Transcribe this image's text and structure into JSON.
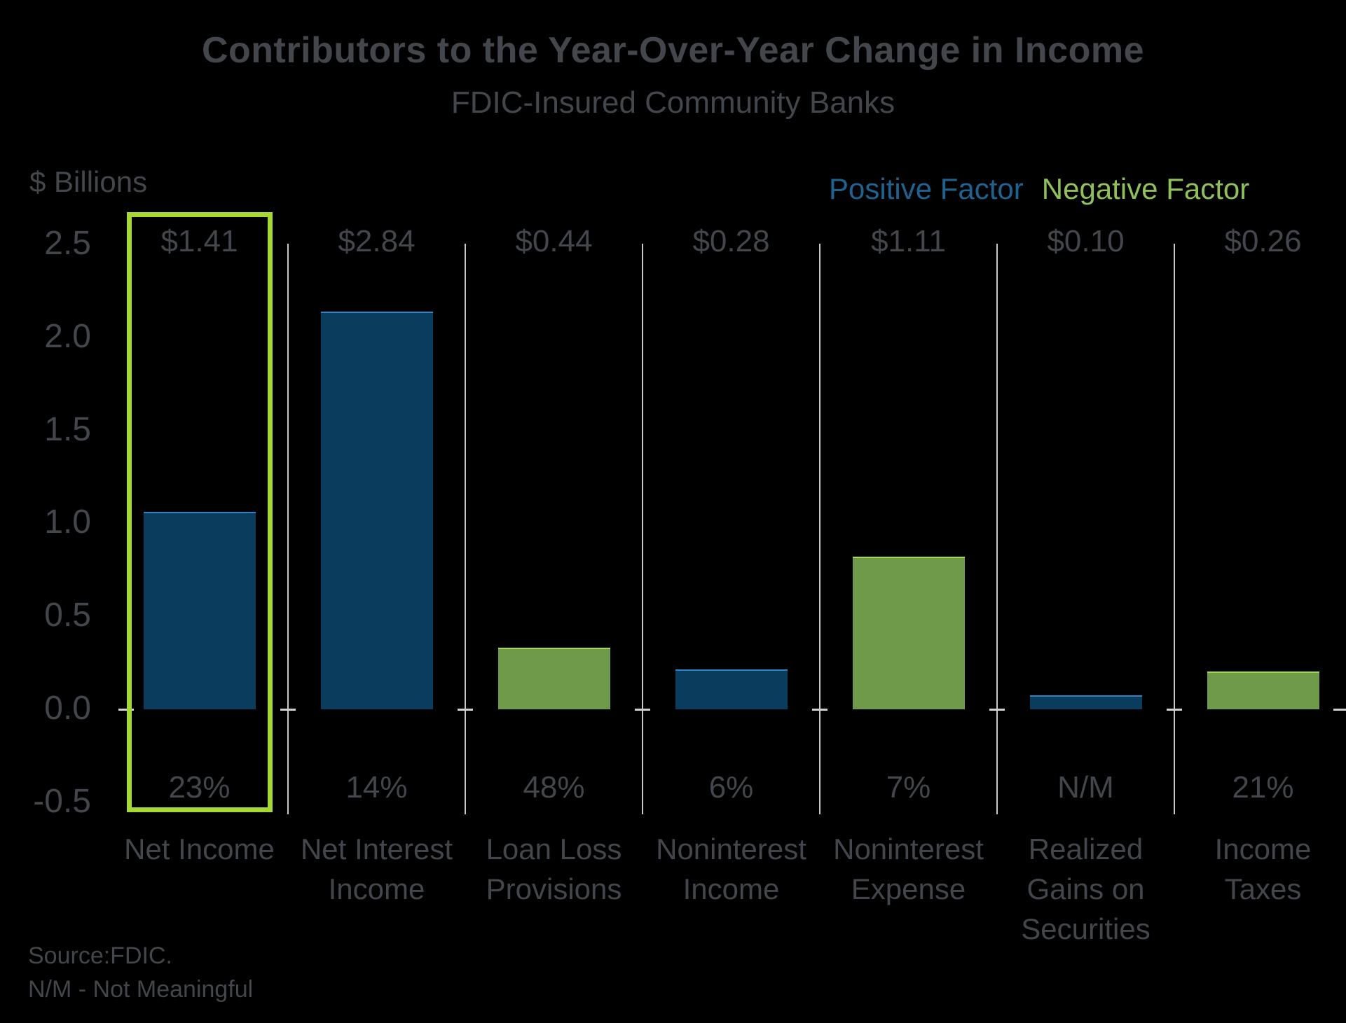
{
  "title": "Contributors to the Year-Over-Year Change in Income",
  "subtitle": "FDIC-Insured Community Banks",
  "y_axis_label": "$ Billions",
  "legend": {
    "positive_label": "Positive Factor",
    "negative_label": "Negative Factor"
  },
  "footer": {
    "source": "Source:FDIC.",
    "note": "N/M - Not Meaningful"
  },
  "colors": {
    "background": "#000000",
    "text": "#43464B",
    "positive_bar": "#0A3C5E",
    "positive_bar_edge": "#2D83C5",
    "negative_bar": "#6F9A4A",
    "negative_bar_edge": "#A9D84A",
    "positive_legend_text": "#1E6290",
    "negative_legend_text": "#8FC05A",
    "highlight_box": "#A5D832",
    "separator": "#C8C8C8",
    "baseline_tick": "#D0D0D0"
  },
  "chart_data": {
    "type": "bar",
    "title": "Contributors to the Year-Over-Year Change in Income",
    "subtitle": "FDIC-Insured Community Banks",
    "ylabel": "$ Billions",
    "xlabel": "",
    "ylim": [
      -0.5,
      2.5
    ],
    "yticks": [
      "2.5",
      "2.0",
      "1.5",
      "1.0",
      "0.5",
      "0.0",
      "-0.5"
    ],
    "ytick_values": [
      2.5,
      2.0,
      1.5,
      1.0,
      0.5,
      0.0,
      -0.5
    ],
    "categories": [
      "Net Income",
      "Net Interest Income",
      "Loan Loss Provisions",
      "Noninterest Income",
      "Noninterest Expense",
      "Realized Gains on Securities",
      "Income Taxes"
    ],
    "category_label_lines": [
      [
        "Net Income"
      ],
      [
        "Net Interest",
        "Income"
      ],
      [
        "Loan Loss",
        "Provisions"
      ],
      [
        "Noninterest",
        "Income"
      ],
      [
        "Noninterest",
        "Expense"
      ],
      [
        "Realized",
        "Gains on",
        "Securities"
      ],
      [
        "Income",
        "Taxes"
      ]
    ],
    "value_labels": [
      "$1.41",
      "$2.84",
      "$0.44",
      "$0.28",
      "$1.11",
      "$0.10",
      "$0.26"
    ],
    "values_billions": [
      1.41,
      2.84,
      0.44,
      0.28,
      1.11,
      0.1,
      0.26
    ],
    "percent_labels": [
      "23%",
      "14%",
      "48%",
      "6%",
      "7%",
      "N/M",
      "21%"
    ],
    "factors": [
      "positive",
      "positive",
      "negative",
      "positive",
      "negative",
      "positive",
      "negative"
    ],
    "bar_height_axis_units": [
      1.06,
      2.14,
      0.33,
      0.215,
      0.82,
      0.075,
      0.205
    ],
    "highlighted_index": 0,
    "legend_entries": [
      {
        "label": "Positive Factor",
        "color": "#0A3C5E"
      },
      {
        "label": "Negative Factor",
        "color": "#6F9A4A"
      }
    ],
    "grid": "vertical column separators only, tick marks on zero baseline",
    "legend_position": "top-right"
  }
}
